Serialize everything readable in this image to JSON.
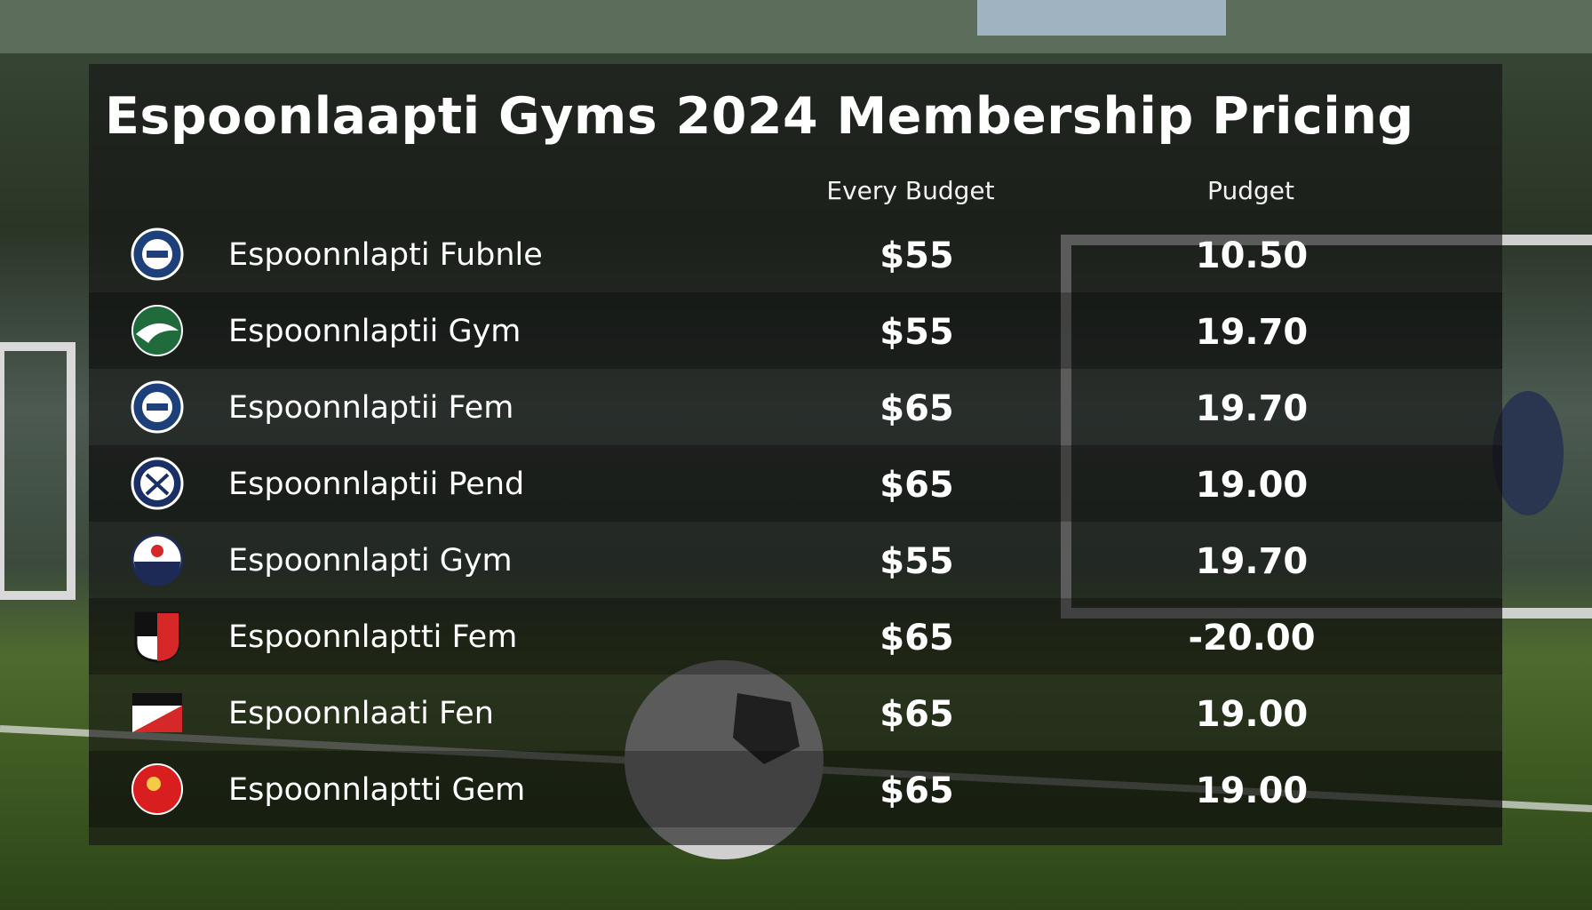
{
  "header": {
    "title": "Espoonlaapti Gyms 2024 Membership Pricing"
  },
  "table": {
    "columns": [
      "Every Budget",
      "Pudget"
    ],
    "rows": [
      {
        "name": "Espoonnlapti Fubnle",
        "price": "$55",
        "value": "10.50"
      },
      {
        "name": "Espoonnlaptii Gym",
        "price": "$55",
        "value": "19.70"
      },
      {
        "name": "Espoonnlaptii Fem",
        "price": "$65",
        "value": "19.70"
      },
      {
        "name": "Espoonnlaptii Pend",
        "price": "$65",
        "value": "19.00"
      },
      {
        "name": "Espoonnlapti Gym",
        "price": "$55",
        "value": "19.70"
      },
      {
        "name": "Espoonnlaptti Fem",
        "price": "$65",
        "value": "-20.00"
      },
      {
        "name": "Espoonnlaati Fen",
        "price": "$65",
        "value": "19.00"
      },
      {
        "name": "Espoonnlaptti Gem",
        "price": "$65",
        "value": "19.00"
      }
    ]
  }
}
